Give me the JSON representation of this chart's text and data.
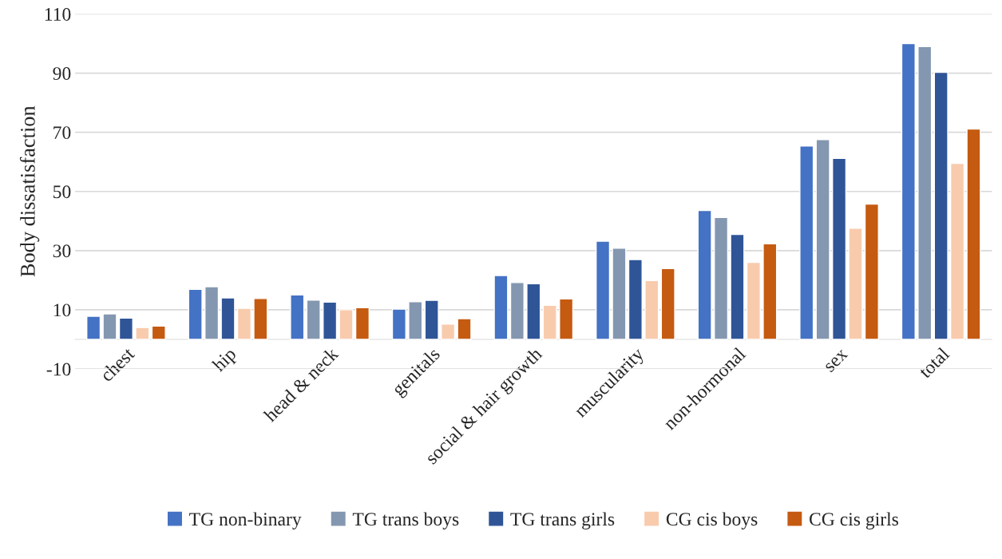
{
  "chart_data": {
    "type": "bar",
    "ylabel": "Body dissatisfaction",
    "categories": [
      "chest",
      "hip",
      "head & neck",
      "genitals",
      "social & hair growth",
      "muscularity",
      "non-hormonal",
      "sex",
      "total"
    ],
    "series": [
      {
        "name": "TG non-binary",
        "color": "#4472c4",
        "values": [
          7.8,
          16.9,
          15.0,
          10.2,
          21.6,
          33.2,
          43.6,
          65.4,
          100.0
        ]
      },
      {
        "name": "TG trans boys",
        "color": "#8497b0",
        "values": [
          8.6,
          17.8,
          13.3,
          12.7,
          19.2,
          30.8,
          41.2,
          67.5,
          99.0
        ]
      },
      {
        "name": "TG trans girls",
        "color": "#2f5597",
        "values": [
          7.2,
          14.0,
          12.6,
          13.2,
          18.8,
          27.0,
          35.5,
          61.2,
          90.3
        ]
      },
      {
        "name": "CG cis boys",
        "color": "#f8cbad",
        "values": [
          4.0,
          10.5,
          10.0,
          5.2,
          11.5,
          19.9,
          26.0,
          37.6,
          59.5
        ]
      },
      {
        "name": "CG cis girls",
        "color": "#c55a11",
        "values": [
          4.5,
          13.8,
          10.7,
          7.0,
          13.7,
          23.9,
          32.3,
          45.7,
          71.1
        ]
      }
    ],
    "ylim": [
      -10,
      110
    ],
    "yticks": [
      -10,
      10,
      30,
      50,
      70,
      90,
      110
    ],
    "grid": "y",
    "legend": "bottom"
  }
}
